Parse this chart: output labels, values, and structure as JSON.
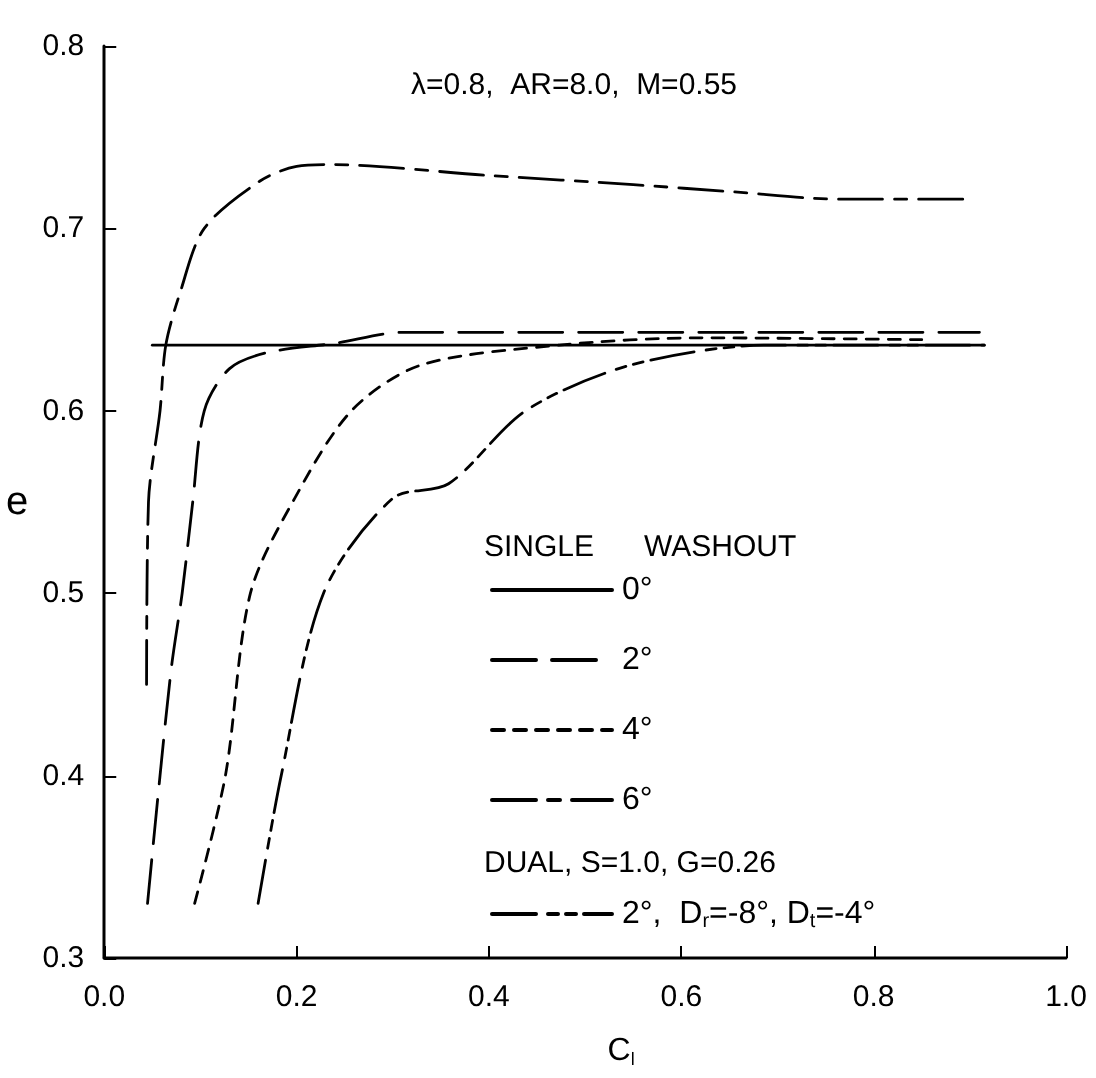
{
  "chart_data": {
    "type": "line",
    "title": "λ=0.8,  AR=8.0,  M=0.55",
    "xlabel": "C$_{l}$",
    "ylabel": "e",
    "legend_title": "SINGLE      WASHOUT",
    "annotations": [
      "DUAL, S=1.0, G=0.26"
    ],
    "xlim": [
      0,
      1
    ],
    "xticks": [
      {
        "value": 0,
        "label": "0.0"
      },
      0.2,
      0.4,
      0.6,
      0.8,
      {
        "value": 1,
        "label": "1.0"
      }
    ],
    "ylim": [
      0.3,
      0.8
    ],
    "yticks": [
      0.3,
      0.4,
      0.5,
      0.6,
      0.7,
      0.8
    ],
    "grid": false,
    "legend": "bottom right",
    "marker": "none",
    "series": [
      {
        "name": "0°",
        "color": "#000000",
        "line_style": "solid",
        "x": [
          0.05,
          0.915
        ],
        "values": [
          0.636,
          0.636
        ]
      },
      {
        "name": "2°",
        "color": "#000000",
        "line_style": "dashed",
        "x": [
          0.045,
          0.058,
          0.07,
          0.081,
          0.092,
          0.104,
          0.13,
          0.17,
          0.24,
          0.31,
          0.91
        ],
        "values": [
          0.33,
          0.4,
          0.46,
          0.5,
          0.55,
          0.6,
          0.623,
          0.632,
          0.637,
          0.643,
          0.643
        ]
      },
      {
        "name": "4°",
        "color": "#000000",
        "line_style": "dotted",
        "x": [
          0.094,
          0.126,
          0.152,
          0.198,
          0.257,
          0.329,
          0.473,
          0.62,
          0.85
        ],
        "values": [
          0.33,
          0.4,
          0.5,
          0.552,
          0.6,
          0.625,
          0.636,
          0.64,
          0.639
        ]
      },
      {
        "name": "6°",
        "color": "#000000",
        "line_style": "dashed",
        "x": [
          0.044,
          0.046,
          0.058,
          0.064,
          0.079,
          0.104,
          0.162,
          0.2,
          0.235,
          0.4,
          0.55,
          0.655,
          0.765,
          0.895
        ],
        "values": [
          0.45,
          0.55,
          0.6,
          0.636,
          0.665,
          0.7,
          0.726,
          0.734,
          0.735,
          0.729,
          0.724,
          0.72,
          0.716,
          0.716
        ]
      },
      {
        "name": "2°,  D$_{r}$=-8°, D$_{t}$=-4°",
        "color": "#000000",
        "line_style": "dashed",
        "x": [
          0.16,
          0.184,
          0.228,
          0.3,
          0.358,
          0.438,
          0.547,
          0.69,
          0.915
        ],
        "values": [
          0.33,
          0.4,
          0.5,
          0.552,
          0.56,
          0.6,
          0.625,
          0.636,
          0.636
        ]
      }
    ]
  }
}
